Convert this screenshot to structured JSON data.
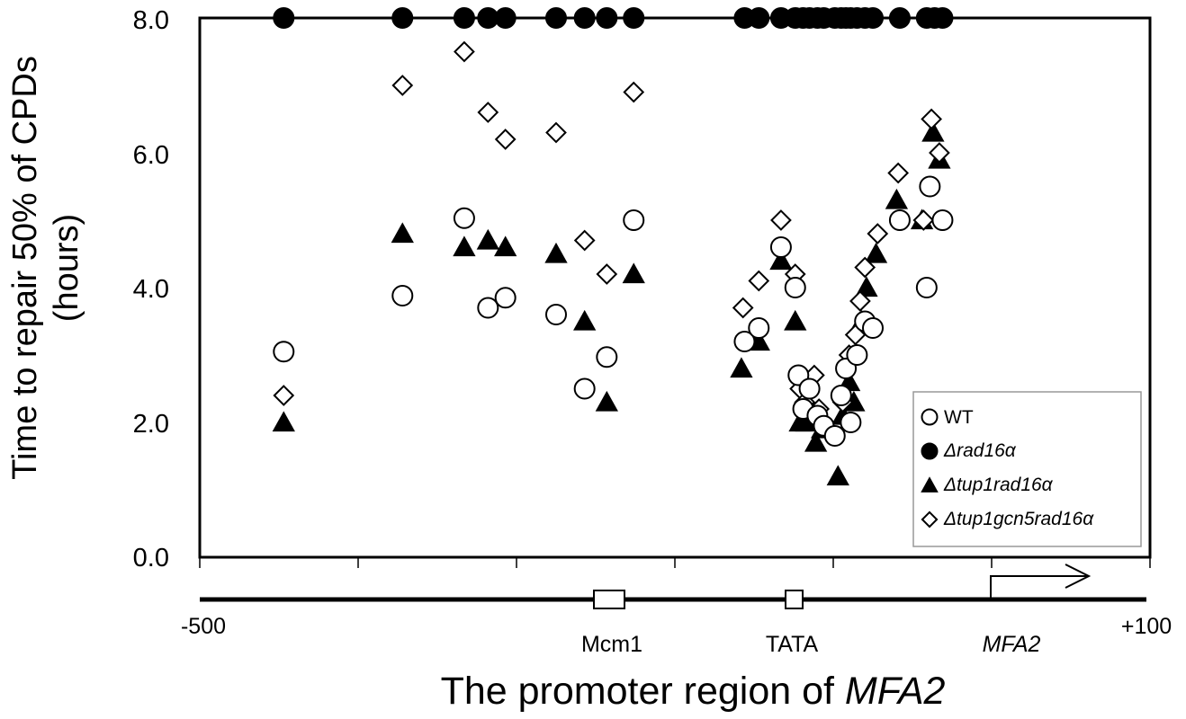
{
  "chart_data": {
    "type": "scatter",
    "ylabel_line1": "Time to repair 50% of CPDs",
    "ylabel_line2": "(hours)",
    "xlabel_prefix": "The promoter region of ",
    "xlabel_gene": "MFA2",
    "ylim": [
      0,
      8
    ],
    "yticks": [
      "0.0",
      "2.0",
      "4.0",
      "6.0",
      "8.0"
    ],
    "xlim": [
      -500,
      100
    ],
    "xtick_labels": {
      "left": "-500",
      "right": "+100"
    },
    "region_labels": {
      "mcm1": "Mcm1",
      "tata": "TATA",
      "gene": "MFA2"
    },
    "grid": false,
    "legend_position": "bottom-right",
    "series": [
      {
        "name": "WT",
        "marker": "open-circle",
        "points": [
          [
            -447,
            3.05
          ],
          [
            -372,
            3.88
          ],
          [
            -333,
            5.03
          ],
          [
            -318,
            3.7
          ],
          [
            -307,
            3.85
          ],
          [
            -275,
            3.6
          ],
          [
            -257,
            2.5
          ],
          [
            -243,
            2.97
          ],
          [
            -226,
            5.0
          ],
          [
            -156,
            3.2
          ],
          [
            -147,
            3.4
          ],
          [
            -133,
            4.6
          ],
          [
            -124,
            4.0
          ],
          [
            -122,
            2.7
          ],
          [
            -119,
            2.2
          ],
          [
            -115,
            2.5
          ],
          [
            -110,
            2.1
          ],
          [
            -106,
            1.95
          ],
          [
            -99,
            1.8
          ],
          [
            -95,
            2.4
          ],
          [
            -92,
            2.8
          ],
          [
            -89,
            2.0
          ],
          [
            -85,
            3.0
          ],
          [
            -80,
            3.5
          ],
          [
            -75,
            3.4
          ],
          [
            -58,
            5.0
          ],
          [
            -41,
            4.0
          ],
          [
            -39,
            5.5
          ],
          [
            -31,
            5.0
          ]
        ]
      },
      {
        "name": "Δrad16α",
        "marker": "filled-circle",
        "points": [
          [
            -447,
            8.0
          ],
          [
            -372,
            8.0
          ],
          [
            -333,
            8.0
          ],
          [
            -318,
            8.0
          ],
          [
            -307,
            8.0
          ],
          [
            -275,
            8.0
          ],
          [
            -257,
            8.0
          ],
          [
            -243,
            8.0
          ],
          [
            -226,
            8.0
          ],
          [
            -156,
            8.0
          ],
          [
            -147,
            8.0
          ],
          [
            -133,
            8.0
          ],
          [
            -124,
            8.0
          ],
          [
            -119,
            8.0
          ],
          [
            -115,
            8.0
          ],
          [
            -110,
            8.0
          ],
          [
            -106,
            8.0
          ],
          [
            -99,
            8.0
          ],
          [
            -95,
            8.0
          ],
          [
            -92,
            8.0
          ],
          [
            -89,
            8.0
          ],
          [
            -85,
            8.0
          ],
          [
            -80,
            8.0
          ],
          [
            -75,
            8.0
          ],
          [
            -58,
            8.0
          ],
          [
            -41,
            8.0
          ],
          [
            -36,
            8.0
          ],
          [
            -31,
            8.0
          ]
        ]
      },
      {
        "name": "Δtup1rad16α",
        "marker": "filled-triangle",
        "points": [
          [
            -447,
            2.0
          ],
          [
            -372,
            4.8
          ],
          [
            -333,
            4.6
          ],
          [
            -318,
            4.7
          ],
          [
            -307,
            4.6
          ],
          [
            -275,
            4.5
          ],
          [
            -257,
            3.5
          ],
          [
            -243,
            2.3
          ],
          [
            -226,
            4.2
          ],
          [
            -158,
            2.8
          ],
          [
            -147,
            3.2
          ],
          [
            -133,
            4.4
          ],
          [
            -124,
            3.5
          ],
          [
            -121,
            2.0
          ],
          [
            -117,
            2.0
          ],
          [
            -111,
            1.7
          ],
          [
            -107,
            1.9
          ],
          [
            -97,
            1.2
          ],
          [
            -94,
            2.1
          ],
          [
            -90,
            2.6
          ],
          [
            -87,
            2.3
          ],
          [
            -82,
            3.5
          ],
          [
            -79,
            4.0
          ],
          [
            -73,
            4.5
          ],
          [
            -60,
            5.3
          ],
          [
            -44,
            5.0
          ],
          [
            -37,
            6.3
          ],
          [
            -33,
            5.9
          ]
        ]
      },
      {
        "name": "Δtup1gcn5rad16α",
        "marker": "open-diamond",
        "points": [
          [
            -447,
            2.4
          ],
          [
            -372,
            7.0
          ],
          [
            -333,
            7.5
          ],
          [
            -318,
            6.6
          ],
          [
            -307,
            6.2
          ],
          [
            -275,
            6.3
          ],
          [
            -257,
            4.7
          ],
          [
            -243,
            4.2
          ],
          [
            -226,
            6.9
          ],
          [
            -157,
            3.7
          ],
          [
            -147,
            4.1
          ],
          [
            -133,
            5.0
          ],
          [
            -124,
            4.2
          ],
          [
            -121,
            2.5
          ],
          [
            -118,
            2.3
          ],
          [
            -112,
            2.7
          ],
          [
            -109,
            2.2
          ],
          [
            -94,
            2.3
          ],
          [
            -90,
            3.0
          ],
          [
            -86,
            3.3
          ],
          [
            -83,
            3.8
          ],
          [
            -80,
            4.3
          ],
          [
            -72,
            4.8
          ],
          [
            -59,
            5.7
          ],
          [
            -43,
            5.0
          ],
          [
            -38,
            6.5
          ],
          [
            -33,
            6.0
          ]
        ]
      }
    ]
  },
  "colors": {
    "ink": "#000000",
    "background": "#ffffff"
  }
}
